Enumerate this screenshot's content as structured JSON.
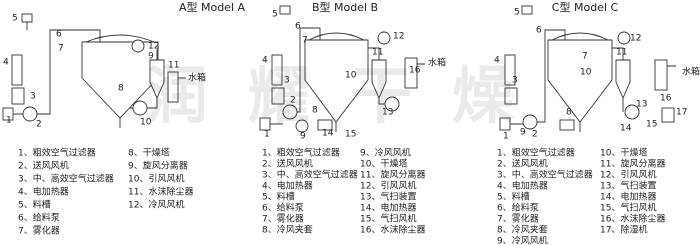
{
  "watermark": "润耀干燥",
  "models": [
    {
      "title": "A型 Model A",
      "labels": [
        "1",
        "2",
        "3",
        "4",
        "5",
        "6",
        "7",
        "8",
        "9",
        "10",
        "11",
        "12",
        "水箱"
      ],
      "legend": [
        "1、粗效空气过滤器",
        "2、送风风机",
        "3、中、高效空气过滤器",
        "4、电加热器",
        "5、料槽",
        "6、给料泵",
        "7、雾化器",
        "8、干燥塔",
        "9、旋风分离器",
        "10、引风风机",
        "11、水沫除尘器",
        "12、冷风风机"
      ]
    },
    {
      "title": "B型 Model B",
      "labels": [
        "1",
        "2",
        "3",
        "4",
        "5",
        "6",
        "7",
        "8",
        "9",
        "10",
        "11",
        "12",
        "13",
        "14",
        "15",
        "16",
        "水箱"
      ],
      "legend": [
        "1、粗效空气过滤器",
        "2、送风风机",
        "3、中、高效空气过滤器",
        "4、电加热器",
        "5、料槽",
        "6、给料泵",
        "7、雾化器",
        "8、冷风夹套",
        "9、冷风风机",
        "10、干燥塔",
        "11、旋风分离器",
        "12、引风风机",
        "13、气扫装置",
        "14、电加热器",
        "15、气扫风机",
        "16、水沫除尘器"
      ]
    },
    {
      "title": "C型 Model C",
      "labels": [
        "1",
        "2",
        "3",
        "4",
        "5",
        "6",
        "7",
        "8",
        "9",
        "10",
        "11",
        "12",
        "13",
        "14",
        "15",
        "16",
        "17",
        "水箱"
      ],
      "legend": [
        "1、粗效空气过滤器",
        "2、送风风机",
        "3、中、高效空气过滤器",
        "4、电加热器",
        "5、料槽",
        "6、给料泵",
        "7、雾化器",
        "8、冷风夹套",
        "9、冷风风机",
        "10、干燥塔",
        "11、旋风分离器",
        "12、引风风机",
        "13、气扫装置",
        "14、电加热器",
        "15、气扫风机",
        "16、水沫除尘器",
        "17、除湿机"
      ]
    }
  ]
}
